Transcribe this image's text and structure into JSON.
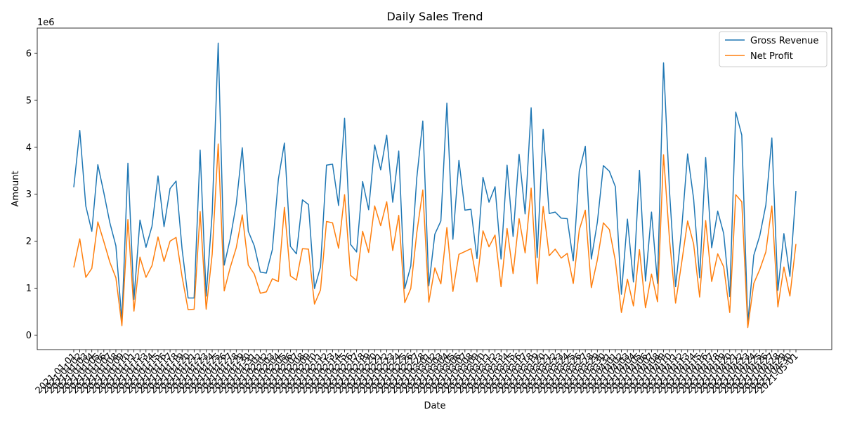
{
  "chart_data": {
    "type": "line",
    "title": "Daily Sales Trend",
    "xlabel": "Date",
    "ylabel": "Amount",
    "y_offset_label": "1e6",
    "ylim": [
      -0.31,
      6.54
    ],
    "y_ticks": [
      0,
      1,
      2,
      3,
      4,
      5,
      6
    ],
    "legend_position": "top-right",
    "grid": false,
    "x_tick_label_rotation": 45,
    "x": [
      "2021-01-01",
      "2021-01-02",
      "2021-01-03",
      "2021-01-04",
      "2021-01-05",
      "2021-01-06",
      "2021-01-07",
      "2021-01-08",
      "2021-01-09",
      "2021-01-10",
      "2021-01-11",
      "2021-01-12",
      "2021-01-13",
      "2021-01-14",
      "2021-01-15",
      "2021-01-16",
      "2021-01-17",
      "2021-01-18",
      "2021-01-19",
      "2021-01-20",
      "2021-01-21",
      "2021-01-22",
      "2021-01-23",
      "2021-01-24",
      "2021-01-25",
      "2021-01-26",
      "2021-01-27",
      "2021-01-28",
      "2021-01-29",
      "2021-01-30",
      "2021-01-31",
      "2021-02-01",
      "2021-02-02",
      "2021-02-03",
      "2021-02-04",
      "2021-02-05",
      "2021-02-06",
      "2021-02-07",
      "2021-02-08",
      "2021-02-09",
      "2021-02-10",
      "2021-02-11",
      "2021-02-12",
      "2021-02-13",
      "2021-02-14",
      "2021-02-15",
      "2021-02-16",
      "2021-02-17",
      "2021-02-18",
      "2021-02-19",
      "2021-02-20",
      "2021-02-21",
      "2021-02-22",
      "2021-02-23",
      "2021-02-24",
      "2021-02-25",
      "2021-02-26",
      "2021-02-27",
      "2021-02-28",
      "2021-03-01",
      "2021-03-02",
      "2021-03-03",
      "2021-03-04",
      "2021-03-05",
      "2021-03-06",
      "2021-03-07",
      "2021-03-08",
      "2021-03-09",
      "2021-03-10",
      "2021-03-11",
      "2021-03-12",
      "2021-03-13",
      "2021-03-14",
      "2021-03-15",
      "2021-03-16",
      "2021-03-17",
      "2021-03-18",
      "2021-03-19",
      "2021-03-20",
      "2021-03-21",
      "2021-03-22",
      "2021-03-23",
      "2021-03-24",
      "2021-03-25",
      "2021-03-26",
      "2021-03-27",
      "2021-03-28",
      "2021-03-29",
      "2021-03-30",
      "2021-03-31",
      "2021-04-01",
      "2021-04-02",
      "2021-04-03",
      "2021-04-04",
      "2021-04-05",
      "2021-04-06",
      "2021-04-07",
      "2021-04-08",
      "2021-04-09",
      "2021-04-10",
      "2021-04-11",
      "2021-04-12",
      "2021-04-13",
      "2021-04-14",
      "2021-04-15",
      "2021-04-16",
      "2021-04-17",
      "2021-04-18",
      "2021-04-19",
      "2021-04-20",
      "2021-04-21",
      "2021-04-22",
      "2021-04-23",
      "2021-04-24",
      "2021-04-25",
      "2021-04-26",
      "2021-04-27",
      "2021-04-28",
      "2021-04-29",
      "2021-04-30",
      "2021-05-01"
    ],
    "series": [
      {
        "name": "Gross Revenue",
        "color": "#1f77b4",
        "values": [
          3.15,
          4.36,
          2.75,
          2.21,
          3.63,
          3.03,
          2.39,
          1.9,
          0.3,
          3.66,
          0.76,
          2.45,
          1.87,
          2.32,
          3.39,
          2.31,
          3.12,
          3.28,
          1.83,
          0.79,
          0.79,
          3.94,
          0.83,
          2.59,
          6.22,
          1.49,
          2.05,
          2.79,
          3.99,
          2.21,
          1.9,
          1.34,
          1.32,
          1.82,
          3.32,
          4.09,
          1.89,
          1.73,
          2.88,
          2.78,
          0.99,
          1.45,
          3.62,
          3.64,
          2.76,
          4.62,
          1.93,
          1.77,
          3.27,
          2.67,
          4.05,
          3.52,
          4.26,
          2.83,
          3.92,
          0.99,
          1.47,
          3.35,
          4.56,
          1.05,
          2.15,
          2.43,
          4.94,
          2.04,
          3.72,
          2.66,
          2.68,
          1.63,
          3.36,
          2.83,
          3.16,
          1.62,
          3.62,
          2.1,
          3.85,
          2.58,
          4.84,
          1.65,
          4.38,
          2.59,
          2.62,
          2.49,
          2.48,
          1.58,
          3.49,
          4.02,
          1.62,
          2.4,
          3.61,
          3.49,
          3.16,
          0.87,
          2.47,
          1.13,
          3.51,
          1.15,
          2.62,
          1.1,
          5.8,
          3.05,
          1.03,
          2.24,
          3.86,
          2.9,
          1.22,
          3.78,
          1.86,
          2.64,
          2.16,
          0.82,
          4.75,
          4.26,
          0.25,
          1.7,
          2.12,
          2.77,
          4.2,
          0.95,
          2.16,
          1.25,
          3.07
        ]
      },
      {
        "name": "Net Profit",
        "color": "#ff7f0e",
        "values": [
          1.44,
          2.05,
          1.23,
          1.42,
          2.41,
          1.99,
          1.55,
          1.22,
          0.2,
          2.46,
          0.51,
          1.66,
          1.23,
          1.48,
          2.09,
          1.57,
          2.0,
          2.08,
          1.24,
          0.54,
          0.55,
          2.63,
          0.55,
          1.72,
          4.07,
          0.94,
          1.44,
          1.86,
          2.56,
          1.49,
          1.3,
          0.89,
          0.92,
          1.2,
          1.14,
          2.72,
          1.26,
          1.17,
          1.84,
          1.83,
          0.66,
          0.96,
          2.42,
          2.39,
          1.85,
          2.99,
          1.27,
          1.16,
          2.21,
          1.76,
          2.75,
          2.33,
          2.84,
          1.8,
          2.55,
          0.69,
          0.99,
          2.18,
          3.09,
          0.7,
          1.43,
          1.09,
          2.29,
          0.93,
          1.72,
          1.78,
          1.84,
          1.13,
          2.22,
          1.88,
          2.13,
          1.03,
          2.27,
          1.31,
          2.48,
          1.75,
          3.13,
          1.09,
          2.74,
          1.69,
          1.83,
          1.64,
          1.74,
          1.1,
          2.24,
          2.66,
          1.01,
          1.6,
          2.39,
          2.25,
          1.58,
          0.48,
          1.19,
          0.62,
          1.82,
          0.58,
          1.3,
          0.71,
          3.84,
          2.02,
          0.68,
          1.53,
          2.43,
          1.94,
          0.81,
          2.44,
          1.14,
          1.73,
          1.45,
          0.48,
          2.99,
          2.84,
          0.16,
          1.1,
          1.4,
          1.77,
          2.75,
          0.6,
          1.45,
          0.83,
          1.94
        ]
      }
    ]
  }
}
